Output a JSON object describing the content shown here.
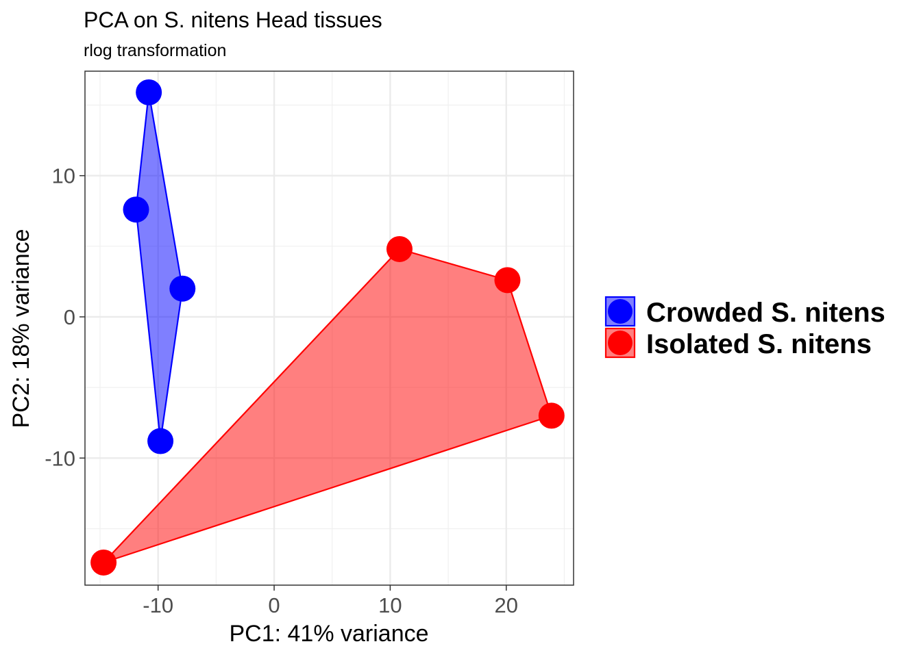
{
  "chart_data": {
    "type": "scatter",
    "title": "PCA on S. nitens Head tissues",
    "subtitle": "rlog transformation",
    "xlabel": "PC1: 41% variance",
    "ylabel": "PC2: 18% variance",
    "xlim": [
      -16.3,
      25.8
    ],
    "ylim": [
      -19.0,
      17.4
    ],
    "x_ticks": [
      -10,
      0,
      10,
      20
    ],
    "y_ticks": [
      -10,
      0,
      10
    ],
    "x_tick_labels": [
      "-10",
      "0",
      "10",
      "20"
    ],
    "y_tick_labels": [
      "-10",
      "0",
      "10"
    ],
    "grid": true,
    "legend_position": "right",
    "hulls": true,
    "series": [
      {
        "name": "Crowded S. nitens",
        "color": "#0000ff",
        "points": [
          {
            "x": -10.8,
            "y": 15.9
          },
          {
            "x": -11.9,
            "y": 7.6
          },
          {
            "x": -7.9,
            "y": 2.0
          },
          {
            "x": -9.8,
            "y": -8.8
          }
        ]
      },
      {
        "name": "Isolated S. nitens",
        "color": "#ff0000",
        "points": [
          {
            "x": 10.8,
            "y": 4.8
          },
          {
            "x": 20.1,
            "y": 2.6
          },
          {
            "x": 23.9,
            "y": -7.0
          },
          {
            "x": -14.7,
            "y": -17.4
          }
        ]
      }
    ]
  }
}
